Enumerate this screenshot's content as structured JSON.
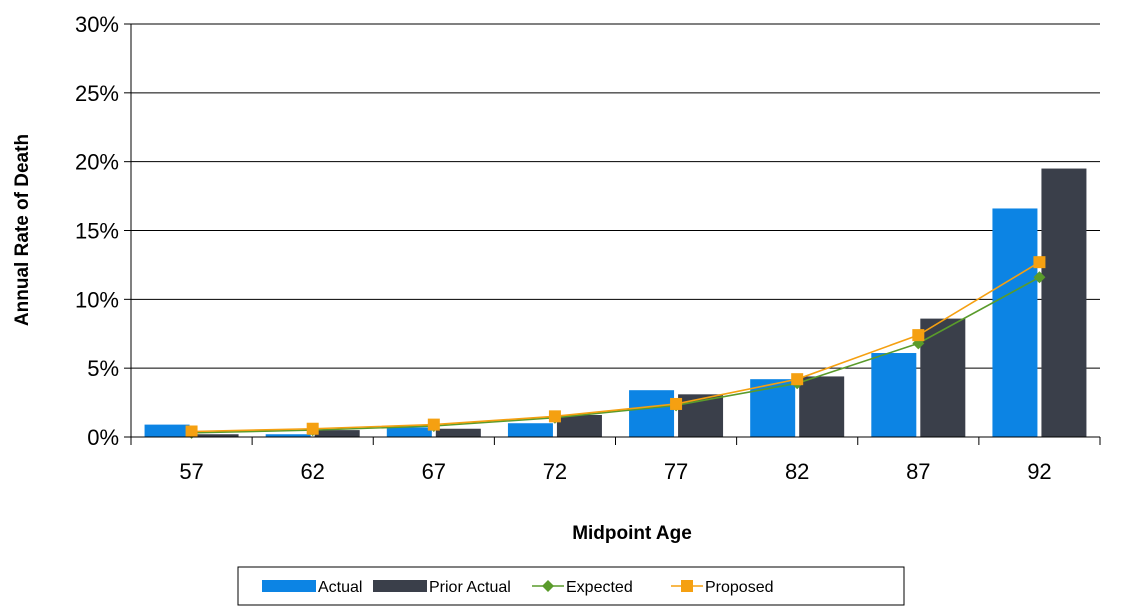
{
  "chart_data": {
    "type": "bar",
    "title": "",
    "xlabel": "Midpoint Age",
    "ylabel": "Annual Rate of Death",
    "categories": [
      "57",
      "62",
      "67",
      "72",
      "77",
      "82",
      "87",
      "92"
    ],
    "ylim": [
      0,
      0.3
    ],
    "yticks": [
      {
        "value": 0.0,
        "label": "0%"
      },
      {
        "value": 0.05,
        "label": "5%"
      },
      {
        "value": 0.1,
        "label": "10%"
      },
      {
        "value": 0.15,
        "label": "15%"
      },
      {
        "value": 0.2,
        "label": "20%"
      },
      {
        "value": 0.25,
        "label": "25%"
      },
      {
        "value": 0.3,
        "label": "30%"
      }
    ],
    "grid": "horizontal",
    "legend_position": "bottom",
    "series": [
      {
        "name": "Actual",
        "kind": "bar",
        "color": "#0C84E4",
        "values": [
          0.009,
          0.002,
          0.007,
          0.01,
          0.034,
          0.042,
          0.061,
          0.166
        ]
      },
      {
        "name": "Prior Actual",
        "kind": "bar",
        "color": "#3A3F4A",
        "values": [
          0.002,
          0.005,
          0.006,
          0.016,
          0.031,
          0.044,
          0.086,
          0.195
        ]
      },
      {
        "name": "Expected",
        "kind": "line",
        "marker": "diamond",
        "color": "#5A9B2B",
        "values": [
          0.003,
          0.005,
          0.008,
          0.014,
          0.023,
          0.039,
          0.068,
          0.116
        ]
      },
      {
        "name": "Proposed",
        "kind": "line",
        "marker": "square",
        "color": "#F5A011",
        "values": [
          0.004,
          0.006,
          0.009,
          0.015,
          0.024,
          0.042,
          0.074,
          0.127
        ]
      }
    ]
  }
}
